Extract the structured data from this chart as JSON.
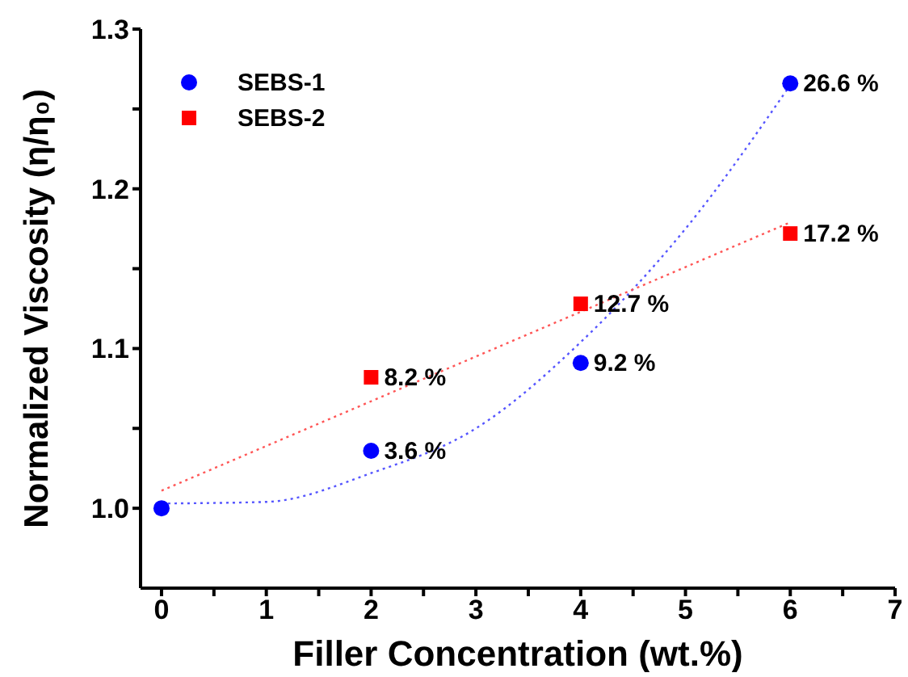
{
  "chart_data": {
    "type": "scatter",
    "xlabel": "Filler Concentration (wt.%)",
    "ylabel": "Normalized Viscosity (η/η₀)",
    "xlim": [
      -0.2,
      7
    ],
    "xticks": [
      0,
      {
        "value": 0.5,
        "label": null
      },
      1,
      {
        "value": 1.5,
        "label": null
      },
      2,
      {
        "value": 2.5,
        "label": null
      },
      3,
      {
        "value": 3.5,
        "label": null
      },
      4,
      {
        "value": 4.5,
        "label": null
      },
      5,
      {
        "value": 5.5,
        "label": null
      },
      6,
      {
        "value": 6.5,
        "label": null
      },
      7
    ],
    "ylim": [
      0.95,
      1.3
    ],
    "yticks": [
      {
        "value": 1.0,
        "label": "1.0"
      },
      {
        "value": 1.05,
        "label": null
      },
      1.1,
      {
        "value": 1.15,
        "label": null
      },
      1.2,
      {
        "value": 1.25,
        "label": null
      },
      1.3
    ],
    "legend": "top left",
    "grid": false,
    "annotations": [
      {
        "text": "3.6 %",
        "x": 2,
        "y": 1.036
      },
      {
        "text": "9.2 %",
        "x": 4,
        "y": 1.091
      },
      {
        "text": "26.6 %",
        "x": 6,
        "y": 1.266
      },
      {
        "text": "8.2 %",
        "x": 2,
        "y": 1.082
      },
      {
        "text": "12.7 %",
        "x": 4,
        "y": 1.128
      },
      {
        "text": "17.2 %",
        "x": 6,
        "y": 1.172
      }
    ],
    "series": [
      {
        "name": "SEBS-1",
        "marker": "circle",
        "color": "#0000ff",
        "x": [
          0,
          2,
          4,
          6
        ],
        "values": [
          1.0,
          1.036,
          1.091,
          1.266
        ]
      },
      {
        "name": "SEBS-2",
        "marker": "square",
        "color": "#ff0000",
        "x": [
          2,
          4,
          6
        ],
        "values": [
          1.082,
          1.128,
          1.172
        ]
      },
      {
        "type": "line",
        "marker": "none",
        "line_style": "dotted",
        "color": "#5555ff",
        "x": [
          0,
          1,
          2,
          3,
          4,
          5,
          6
        ],
        "values": [
          1.003,
          1.004,
          1.022,
          1.05,
          1.104,
          1.175,
          1.265
        ]
      },
      {
        "type": "line",
        "marker": "none",
        "line_style": "dotted",
        "color": "#ff5555",
        "x": [
          0,
          6
        ],
        "values": [
          1.011,
          1.179
        ]
      }
    ]
  }
}
